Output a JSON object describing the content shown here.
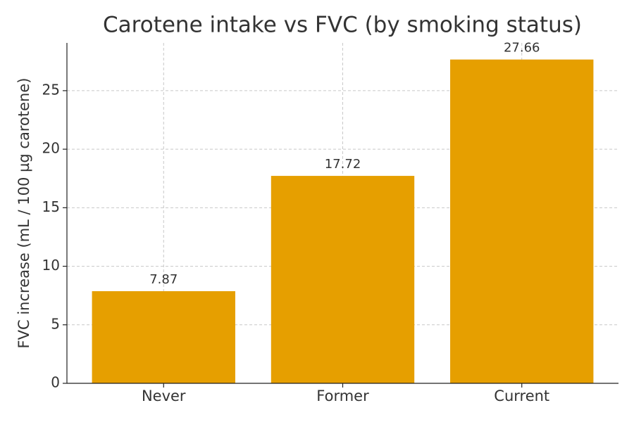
{
  "chart_data": {
    "type": "bar",
    "title": "Carotene intake vs FVC (by smoking status)",
    "y_label": "FVC increase (mL / 100 µg carotene)",
    "categories": [
      "Never",
      "Former",
      "Current"
    ],
    "values": [
      7.87,
      17.72,
      27.66
    ],
    "color": "#e69f00",
    "ylim": [
      0,
      29.08
    ],
    "yticks": [
      0,
      5,
      10,
      15,
      20,
      25
    ],
    "grid": true,
    "show_value_labels": true
  }
}
